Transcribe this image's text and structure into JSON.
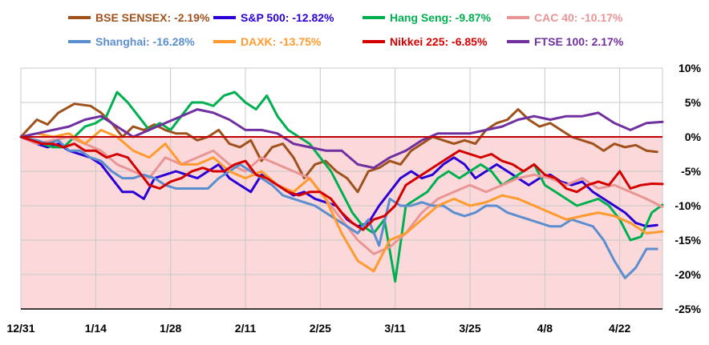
{
  "chart_data": {
    "type": "line",
    "title": "",
    "xlabel": "",
    "ylabel": "",
    "ylim": [
      -25,
      10
    ],
    "yticks": [
      10,
      5,
      0,
      -5,
      -10,
      -15,
      -20,
      -25
    ],
    "ytick_labels": [
      "10%",
      "5%",
      "0%",
      "-5%",
      "-10%",
      "-15%",
      "-20%",
      "-25%"
    ],
    "xlim": [
      0,
      120
    ],
    "xticks": [
      0,
      14,
      28,
      42,
      56,
      70,
      84,
      98,
      112
    ],
    "xtick_labels": [
      "12/31",
      "1/14",
      "1/28",
      "2/11",
      "2/25",
      "3/11",
      "3/25",
      "4/8",
      "4/22"
    ],
    "grid": true,
    "legend_position": "top",
    "negative_region_color": "#fbd9da",
    "zero_line_color": "#c00000",
    "series": [
      {
        "name": "BSE SENSEX: -2.19%",
        "color": "#a0521c",
        "x": [
          0,
          3,
          5,
          7,
          10,
          13,
          15,
          17,
          19,
          21,
          23,
          25,
          27,
          29,
          31,
          33,
          35,
          37,
          39,
          41,
          43,
          45,
          47,
          49,
          51,
          53,
          55,
          57,
          59,
          61,
          63,
          65,
          67,
          69,
          71,
          73,
          75,
          77,
          79,
          81,
          83,
          85,
          87,
          89,
          91,
          93,
          95,
          97,
          99,
          101,
          103,
          105,
          107,
          109,
          111,
          113,
          115,
          117,
          119
        ],
        "y": [
          0,
          2.5,
          1.8,
          3.5,
          4.8,
          4.5,
          3.5,
          2,
          0,
          1.5,
          1,
          1.8,
          1,
          0.5,
          0.5,
          -0.5,
          0,
          1,
          -1,
          -1.5,
          -0.5,
          -3.5,
          -1.5,
          -1,
          -3,
          -6,
          -4,
          -3.5,
          -5,
          -6,
          -8,
          -5,
          -4.5,
          -3.5,
          -4,
          -2,
          -1,
          0,
          -0.5,
          -1,
          -0.5,
          -1,
          1,
          2,
          2.5,
          4,
          2.5,
          1.5,
          2,
          1,
          0,
          -0.5,
          -1,
          -2,
          -1,
          -1.5,
          -1.2,
          -2,
          -2.19
        ]
      },
      {
        "name": "S&P 500: -12.82%",
        "color": "#2b00d6",
        "x": [
          0,
          3,
          5,
          7,
          9,
          11,
          13,
          15,
          17,
          19,
          21,
          23,
          25,
          27,
          29,
          31,
          33,
          35,
          37,
          39,
          41,
          43,
          45,
          47,
          49,
          51,
          53,
          55,
          57,
          59,
          61,
          63,
          65,
          67,
          69,
          71,
          73,
          75,
          77,
          79,
          81,
          83,
          85,
          87,
          89,
          91,
          93,
          95,
          97,
          99,
          101,
          103,
          105,
          107,
          109,
          111,
          113,
          115,
          117,
          119
        ],
        "y": [
          0,
          -1,
          -1.5,
          -1,
          -2,
          -2.5,
          -3,
          -4,
          -6,
          -8,
          -8,
          -9,
          -6,
          -5.5,
          -5,
          -5.5,
          -6,
          -5,
          -4,
          -6,
          -7,
          -8,
          -5.5,
          -6.5,
          -7.5,
          -8.5,
          -8,
          -9,
          -9.5,
          -10,
          -12,
          -13,
          -12.5,
          -10,
          -8,
          -6,
          -5,
          -6,
          -5.5,
          -4,
          -3,
          -4,
          -6,
          -5,
          -4,
          -5,
          -6,
          -7,
          -6,
          -5.5,
          -6.5,
          -7,
          -6.5,
          -8,
          -9,
          -10,
          -11,
          -12.5,
          -13,
          -12.82
        ]
      },
      {
        "name": "Hang Seng: -9.87%",
        "color": "#00b050",
        "x": [
          0,
          2,
          4,
          6,
          8,
          10,
          12,
          14,
          16,
          18,
          20,
          22,
          24,
          26,
          28,
          30,
          32,
          34,
          36,
          38,
          40,
          42,
          44,
          46,
          48,
          50,
          52,
          54,
          56,
          58,
          60,
          62,
          64,
          66,
          68,
          70,
          72,
          74,
          76,
          78,
          80,
          82,
          84,
          86,
          88,
          90,
          92,
          94,
          96,
          98,
          100,
          102,
          104,
          106,
          108,
          110,
          112,
          114,
          116,
          118,
          120
        ],
        "y": [
          0,
          -0.5,
          -1,
          -1.5,
          -1.5,
          0,
          1.5,
          2,
          3,
          6.5,
          5,
          3,
          1,
          2,
          1,
          3,
          5,
          5,
          4.5,
          6,
          6.5,
          5,
          4,
          6,
          3,
          1,
          0,
          -1,
          -3,
          -5,
          -8,
          -11,
          -13,
          -14,
          -12,
          -21,
          -10,
          -9,
          -8,
          -6,
          -5,
          -6,
          -5,
          -4,
          -5,
          -7,
          -6,
          -5,
          -4,
          -7,
          -8,
          -9,
          -10,
          -9.5,
          -9,
          -10,
          -12,
          -15,
          -14.5,
          -11,
          -9.87
        ]
      },
      {
        "name": "CAC 40: -10.17%",
        "color": "#e99594",
        "x": [
          0,
          3,
          6,
          9,
          12,
          15,
          18,
          21,
          24,
          27,
          30,
          33,
          36,
          39,
          42,
          45,
          48,
          51,
          54,
          57,
          60,
          63,
          66,
          69,
          72,
          75,
          78,
          81,
          84,
          87,
          90,
          93,
          96,
          99,
          102,
          105,
          108,
          111,
          114,
          117,
          120
        ],
        "y": [
          0,
          -1,
          -0.5,
          0,
          -1,
          -2,
          -4,
          -5,
          -6,
          -3,
          -4,
          -3,
          -2,
          -4,
          -5,
          -3,
          -4,
          -5,
          -6,
          -9,
          -12,
          -15,
          -17,
          -16,
          -14,
          -11,
          -9,
          -8,
          -7,
          -8,
          -7,
          -6,
          -5.5,
          -6,
          -7,
          -6,
          -7.5,
          -7,
          -8,
          -9,
          -10.17
        ]
      },
      {
        "name": "Shanghai: -16.28%",
        "color": "#5b8ecf",
        "x": [
          0,
          3,
          5,
          7,
          9,
          11,
          13,
          15,
          17,
          19,
          21,
          23,
          25,
          27,
          29,
          31,
          33,
          35,
          37,
          39,
          41,
          43,
          45,
          47,
          49,
          51,
          53,
          55,
          57,
          59,
          61,
          63,
          65,
          67,
          69,
          71,
          73,
          75,
          77,
          79,
          81,
          83,
          85,
          87,
          89,
          91,
          93,
          95,
          97,
          99,
          101,
          103,
          105,
          107,
          109,
          111,
          113,
          115,
          117,
          119
        ],
        "y": [
          0,
          -0.5,
          -1,
          -0.5,
          -2,
          -2,
          -3,
          -3.5,
          -5,
          -6,
          -6,
          -5.5,
          -6,
          -7,
          -7.5,
          -7.5,
          -7.5,
          -7.5,
          -6,
          -5,
          -4,
          -5,
          -6,
          -7,
          -8.5,
          -9,
          -9.5,
          -10,
          -11,
          -12,
          -13,
          -14,
          -12,
          -15.8,
          -9,
          -10,
          -10,
          -9.5,
          -10,
          -10,
          -11,
          -11.5,
          -11,
          -10,
          -10,
          -11,
          -11.5,
          -12,
          -12.5,
          -13,
          -13,
          -12,
          -12.5,
          -13,
          -15,
          -18,
          -20.5,
          -19,
          -16.28,
          -16.28
        ]
      },
      {
        "name": "DAXK: -13.75%",
        "color": "#ff9b2e",
        "x": [
          0,
          3,
          6,
          9,
          12,
          15,
          18,
          21,
          24,
          27,
          30,
          33,
          36,
          39,
          42,
          45,
          48,
          51,
          54,
          57,
          60,
          63,
          66,
          69,
          72,
          75,
          78,
          81,
          84,
          87,
          90,
          93,
          96,
          99,
          102,
          105,
          108,
          111,
          114,
          117,
          120
        ],
        "y": [
          0,
          0.5,
          0,
          0.5,
          -1,
          1,
          0,
          -2,
          -3,
          -1,
          -4,
          -4,
          -3,
          -5,
          -6,
          -5,
          -7,
          -8,
          -6,
          -9,
          -14,
          -18,
          -19.5,
          -15,
          -14,
          -12,
          -10,
          -9,
          -10,
          -9.5,
          -8.5,
          -9,
          -10,
          -11,
          -12,
          -11.5,
          -11,
          -11.5,
          -12.5,
          -14,
          -13.75
        ]
      },
      {
        "name": "Nikkei 225: -6.85%",
        "color": "#d40000",
        "x": [
          0,
          2,
          4,
          6,
          8,
          10,
          12,
          14,
          16,
          18,
          20,
          22,
          24,
          26,
          28,
          30,
          32,
          34,
          36,
          38,
          40,
          42,
          44,
          46,
          48,
          50,
          52,
          54,
          56,
          58,
          60,
          62,
          64,
          66,
          68,
          70,
          72,
          74,
          76,
          78,
          80,
          82,
          84,
          86,
          88,
          90,
          92,
          94,
          96,
          98,
          100,
          102,
          104,
          106,
          108,
          110,
          112,
          114,
          116,
          118,
          120
        ],
        "y": [
          0,
          -0.5,
          -1,
          -1,
          -1.5,
          -1,
          -2,
          -2,
          -3,
          -2.5,
          -3,
          -5,
          -7,
          -7.5,
          -6.5,
          -6,
          -5,
          -4.5,
          -5,
          -5,
          -4,
          -3.5,
          -5.5,
          -6,
          -7,
          -8,
          -8.5,
          -8,
          -8,
          -9,
          -11,
          -12.5,
          -13.5,
          -12,
          -11.5,
          -10,
          -7,
          -6,
          -5,
          -4,
          -3,
          -2,
          -2.5,
          -3,
          -2.5,
          -3.5,
          -4,
          -5,
          -4,
          -5.5,
          -6,
          -7.5,
          -8,
          -7,
          -6.5,
          -7,
          -5,
          -7.5,
          -7,
          -6.8,
          -6.85
        ]
      },
      {
        "name": "FTSE 100: 2.17%",
        "color": "#7030a0",
        "x": [
          0,
          3,
          6,
          9,
          12,
          15,
          18,
          21,
          24,
          27,
          30,
          33,
          36,
          39,
          42,
          45,
          48,
          51,
          54,
          57,
          60,
          63,
          66,
          69,
          72,
          75,
          78,
          81,
          84,
          87,
          90,
          93,
          96,
          99,
          102,
          105,
          108,
          111,
          114,
          117,
          120
        ],
        "y": [
          0,
          0.5,
          1,
          1.5,
          2.5,
          3,
          1.5,
          0,
          1,
          2,
          3,
          4,
          3.5,
          2.5,
          1,
          1,
          0.5,
          -1,
          -1.5,
          -2,
          -2,
          -4,
          -4.5,
          -3,
          -2,
          -0.5,
          0.5,
          0.5,
          0.5,
          1,
          1.5,
          2.5,
          3,
          2.5,
          3,
          3,
          3.5,
          2,
          1,
          2,
          2.17
        ]
      }
    ]
  }
}
